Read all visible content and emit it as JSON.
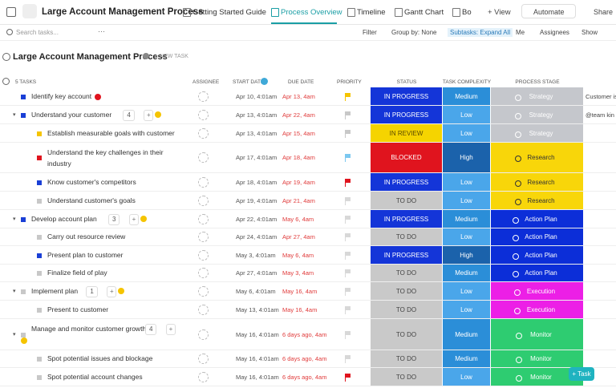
{
  "header": {
    "title": "Large Account Management Process",
    "tabs": [
      "Getting Started Guide",
      "Process Overview",
      "Timeline",
      "Gantt Chart",
      "Bo"
    ],
    "add_view": "+ View",
    "automate": "Automate",
    "share": "Share"
  },
  "toolbar": {
    "search": "Search tasks...",
    "more": "···",
    "filter": "Filter",
    "group_by": "Group by: None",
    "subtasks": "Subtasks: Expand All",
    "me": "Me",
    "assignees": "Assignees",
    "show": "Show"
  },
  "list": {
    "title": "Large Account Management Process",
    "new_task": "+ NEW TASK",
    "count": "5 TASKS",
    "columns": [
      "ASSIGNEE",
      "START DATE",
      "DUE DATE",
      "PRIORITY",
      "STATUS",
      "TASK COMPLEXITY",
      "PROCESS STAGE"
    ],
    "rows": [
      {
        "name": "Identify key account",
        "child": false,
        "square": "#1a3fd6",
        "start": "Apr 10, 4:01am",
        "due": "Apr 13, 4am",
        "due_color": "#e03b3b",
        "flag": "#f5c400",
        "status": "IN PROGRESS",
        "status_bg": "#1435d8",
        "status_fg": "#ffffff",
        "complexity": "Medium",
        "complexity_bg": "#2b8ed8",
        "stage": "Strategy",
        "stage_bg": "#c5c7cc",
        "stage_fg": "#ffffff",
        "note": "Customer is"
      },
      {
        "name": "Understand your customer",
        "child": false,
        "square": "#1a3fd6",
        "subtasks": "4",
        "start": "Apr 13, 4:01am",
        "due": "Apr 22, 4am",
        "due_color": "#e03b3b",
        "flag": "#c8c8c8",
        "status": "IN PROGRESS",
        "status_bg": "#1435d8",
        "status_fg": "#ffffff",
        "complexity": "Low",
        "complexity_bg": "#4aa6ea",
        "stage": "Strategy",
        "stage_bg": "#c5c7cc",
        "stage_fg": "#ffffff",
        "note": "@team kin"
      },
      {
        "name": "Establish measurable goals with customer",
        "child": true,
        "square": "#f5c400",
        "start": "Apr 13, 4:01am",
        "due": "Apr 15, 4am",
        "due_color": "#e03b3b",
        "flag": "#c8c8c8",
        "status": "IN REVIEW",
        "status_bg": "#f5d400",
        "status_fg": "#5a4a00",
        "complexity": "Low",
        "complexity_bg": "#4aa6ea",
        "stage": "Strategy",
        "stage_bg": "#c5c7cc",
        "stage_fg": "#ffffff"
      },
      {
        "name": "Understand the key challenges in their industry",
        "child": true,
        "square": "#e0141e",
        "start": "Apr 17, 4:01am",
        "due": "Apr 18, 4am",
        "due_color": "#e03b3b",
        "flag": "#7cc8f0",
        "status": "BLOCKED",
        "status_bg": "#e0141e",
        "status_fg": "#ffffff",
        "complexity": "High",
        "complexity_bg": "#1b62ab",
        "stage": "Research",
        "stage_bg": "#f8d60a",
        "stage_fg": "#333333"
      },
      {
        "name": "Know customer's competitors",
        "child": true,
        "square": "#1a3fd6",
        "start": "Apr 18, 4:01am",
        "due": "Apr 19, 4am",
        "due_color": "#e03b3b",
        "flag": "#e0141e",
        "status": "IN PROGRESS",
        "status_bg": "#1435d8",
        "status_fg": "#ffffff",
        "complexity": "Low",
        "complexity_bg": "#4aa6ea",
        "stage": "Research",
        "stage_bg": "#f8d60a",
        "stage_fg": "#333333"
      },
      {
        "name": "Understand customer's goals",
        "child": true,
        "square": "#c8c8c8",
        "start": "Apr 19, 4:01am",
        "due": "Apr 21, 4am",
        "due_color": "#e03b3b",
        "flag": "#d8d8d8",
        "status": "TO DO",
        "status_bg": "#c9c9c9",
        "status_fg": "#444444",
        "complexity": "Low",
        "complexity_bg": "#4aa6ea",
        "stage": "Research",
        "stage_bg": "#f8d60a",
        "stage_fg": "#333333"
      },
      {
        "name": "Develop account plan",
        "child": false,
        "square": "#1a3fd6",
        "subtasks": "3",
        "start": "Apr 22, 4:01am",
        "due": "May 6, 4am",
        "due_color": "#e03b3b",
        "flag": "#d8d8d8",
        "status": "IN PROGRESS",
        "status_bg": "#1435d8",
        "status_fg": "#ffffff",
        "complexity": "Medium",
        "complexity_bg": "#2b8ed8",
        "stage": "Action Plan",
        "stage_bg": "#0c2ed8",
        "stage_fg": "#ffffff"
      },
      {
        "name": "Carry out resource review",
        "child": true,
        "square": "#c8c8c8",
        "start": "Apr 24, 4:01am",
        "due": "Apr 27, 4am",
        "due_color": "#e03b3b",
        "flag": "#d8d8d8",
        "status": "TO DO",
        "status_bg": "#c9c9c9",
        "status_fg": "#444444",
        "complexity": "Low",
        "complexity_bg": "#4aa6ea",
        "stage": "Action Plan",
        "stage_bg": "#0c2ed8",
        "stage_fg": "#ffffff"
      },
      {
        "name": "Present plan to customer",
        "child": true,
        "square": "#1a3fd6",
        "start": "May 3, 4:01am",
        "due": "May 6, 4am",
        "due_color": "#e03b3b",
        "flag": "#d8d8d8",
        "status": "IN PROGRESS",
        "status_bg": "#1435d8",
        "status_fg": "#ffffff",
        "complexity": "High",
        "complexity_bg": "#1b62ab",
        "stage": "Action Plan",
        "stage_bg": "#0c2ed8",
        "stage_fg": "#ffffff"
      },
      {
        "name": "Finalize field of play",
        "child": true,
        "square": "#c8c8c8",
        "start": "Apr 27, 4:01am",
        "due": "May 3, 4am",
        "due_color": "#e03b3b",
        "flag": "#d8d8d8",
        "status": "TO DO",
        "status_bg": "#c9c9c9",
        "status_fg": "#444444",
        "complexity": "Medium",
        "complexity_bg": "#2b8ed8",
        "stage": "Action Plan",
        "stage_bg": "#0c2ed8",
        "stage_fg": "#ffffff"
      },
      {
        "name": "Implement plan",
        "child": false,
        "square": "#c8c8c8",
        "subtasks": "1",
        "start": "May 6, 4:01am",
        "due": "May 16, 4am",
        "due_color": "#e03b3b",
        "flag": "#d8d8d8",
        "status": "TO DO",
        "status_bg": "#c9c9c9",
        "status_fg": "#444444",
        "complexity": "Low",
        "complexity_bg": "#4aa6ea",
        "stage": "Execution",
        "stage_bg": "#ec1fe6",
        "stage_fg": "#ffffff"
      },
      {
        "name": "Present to customer",
        "child": true,
        "square": "#c8c8c8",
        "start": "May 13, 4:01am",
        "due": "May 16, 4am",
        "due_color": "#e03b3b",
        "flag": "#d8d8d8",
        "status": "TO DO",
        "status_bg": "#c9c9c9",
        "status_fg": "#444444",
        "complexity": "Low",
        "complexity_bg": "#4aa6ea",
        "stage": "Execution",
        "stage_bg": "#ec1fe6",
        "stage_fg": "#ffffff"
      },
      {
        "name": "Manage and monitor customer growth",
        "child": false,
        "square": "#c8c8c8",
        "subtasks": "4",
        "start": "May 16, 4:01am",
        "due": "6 days ago, 4am",
        "due_color": "#e03b3b",
        "flag": "#d8d8d8",
        "status": "TO DO",
        "status_bg": "#c9c9c9",
        "status_fg": "#444444",
        "complexity": "Medium",
        "complexity_bg": "#2b8ed8",
        "stage": "Monitor",
        "stage_bg": "#2ecc71",
        "stage_fg": "#ffffff"
      },
      {
        "name": "Spot potential issues and blockage",
        "child": true,
        "square": "#c8c8c8",
        "start": "May 16, 4:01am",
        "due": "6 days ago, 4am",
        "due_color": "#e03b3b",
        "flag": "#d8d8d8",
        "status": "TO DO",
        "status_bg": "#c9c9c9",
        "status_fg": "#444444",
        "complexity": "Medium",
        "complexity_bg": "#2b8ed8",
        "stage": "Monitor",
        "stage_bg": "#2ecc71",
        "stage_fg": "#ffffff"
      },
      {
        "name": "Spot potential account changes",
        "child": true,
        "square": "#c8c8c8",
        "start": "May 16, 4:01am",
        "due": "6 days ago, 4am",
        "due_color": "#e03b3b",
        "flag": "#e0141e",
        "status": "TO DO",
        "status_bg": "#c9c9c9",
        "status_fg": "#444444",
        "complexity": "Low",
        "complexity_bg": "#4aa6ea",
        "stage": "Monitor",
        "stage_bg": "#2ecc71",
        "stage_fg": "#ffffff"
      }
    ]
  },
  "task_button": "+ Task"
}
